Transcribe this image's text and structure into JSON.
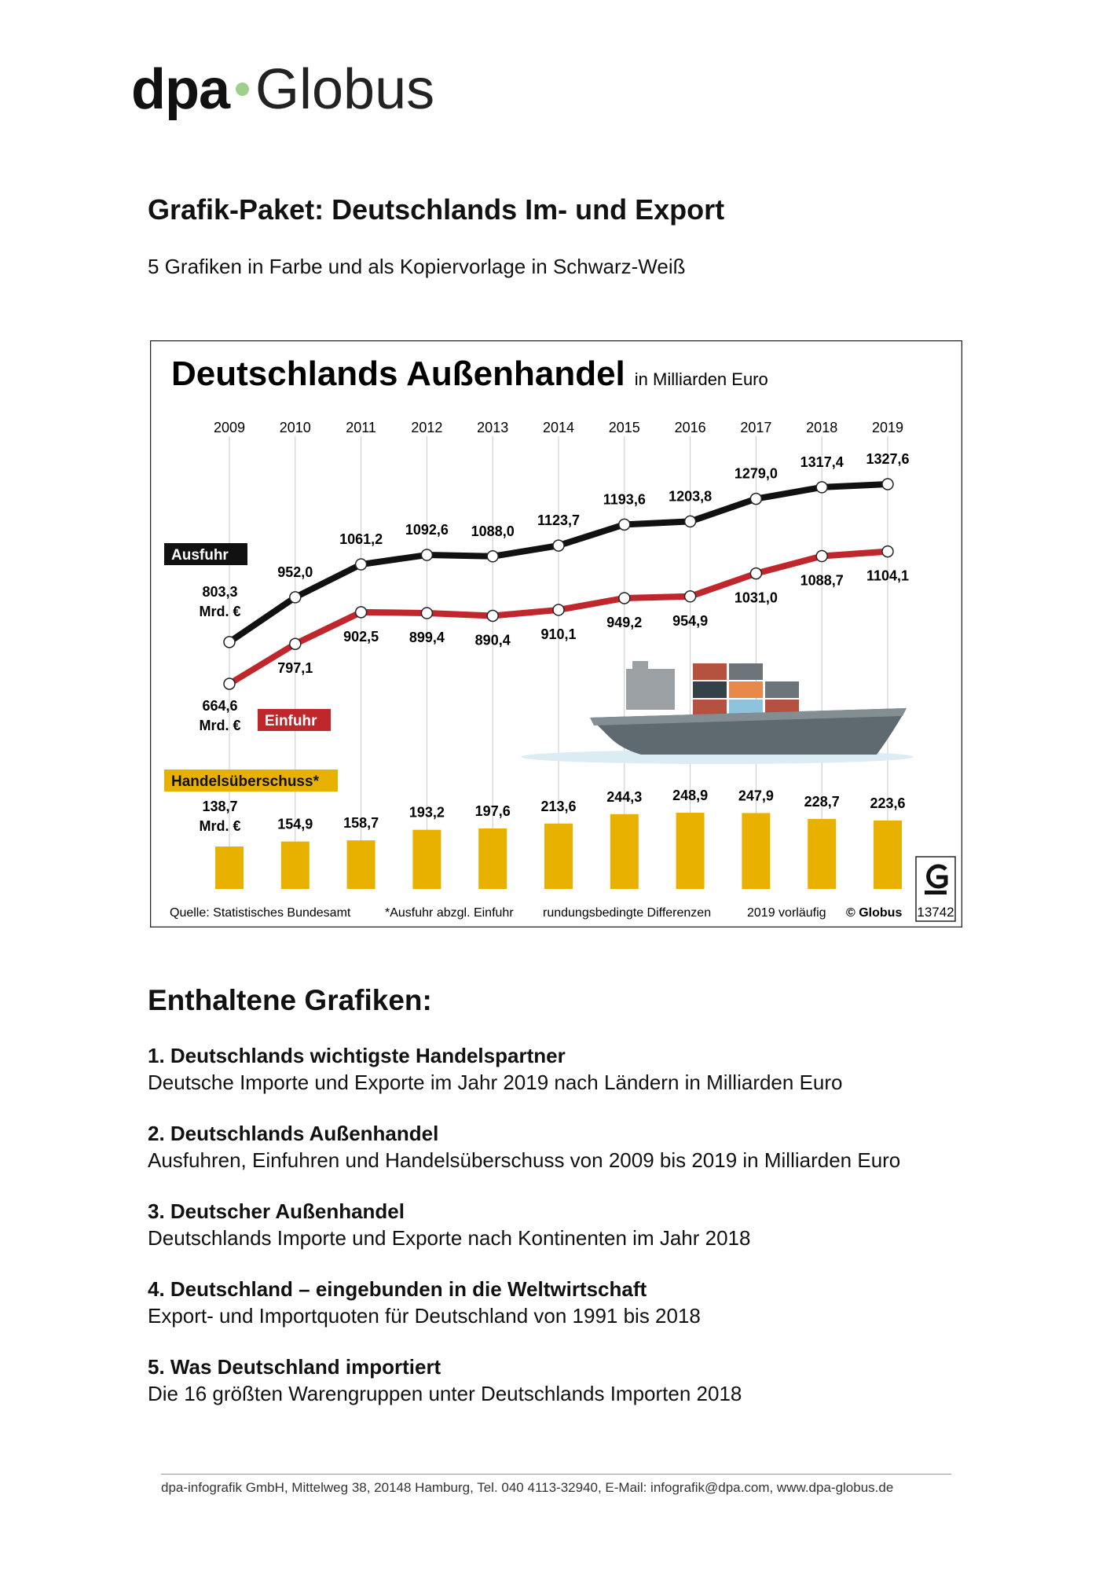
{
  "header": {
    "logo_left": "dpa",
    "logo_right": "Globus",
    "title": "Grafik-Paket: Deutschlands Im- und Export",
    "subtitle": "5 Grafiken in Farbe und als Kopiervorlage in Schwarz-Weiß"
  },
  "chart_data": {
    "type": "line",
    "title": "Deutschlands Außenhandel",
    "subtitle": "in Milliarden Euro",
    "categories": [
      "2009",
      "2010",
      "2011",
      "2012",
      "2013",
      "2014",
      "2015",
      "2016",
      "2017",
      "2018",
      "2019"
    ],
    "unit_label": "Mrd. €",
    "series": [
      {
        "name": "Ausfuhr",
        "color": "#111111",
        "values": [
          803.3,
          952.0,
          1061.2,
          1092.6,
          1088.0,
          1123.7,
          1193.6,
          1203.8,
          1279.0,
          1317.4,
          1327.6
        ],
        "value_labels": [
          "803,3",
          "952,0",
          "1061,2",
          "1092,6",
          "1088,0",
          "1123,7",
          "1193,6",
          "1203,8",
          "1279,0",
          "1317,4",
          "1327,6"
        ]
      },
      {
        "name": "Einfuhr",
        "color": "#c0272d",
        "values": [
          664.6,
          797.1,
          902.5,
          899.4,
          890.4,
          910.1,
          949.2,
          954.9,
          1031.0,
          1088.7,
          1104.1
        ],
        "value_labels": [
          "664,6",
          "797,1",
          "902,5",
          "899,4",
          "890,4",
          "910,1",
          "949,2",
          "954,9",
          "1031,0",
          "1088,7",
          "1104,1"
        ]
      },
      {
        "name": "Handelsüberschuss*",
        "type": "bar",
        "color": "#e8b100",
        "values": [
          138.7,
          154.9,
          158.7,
          193.2,
          197.6,
          213.6,
          244.3,
          248.9,
          247.9,
          228.7,
          223.6
        ],
        "value_labels": [
          "138,7",
          "154,9",
          "158,7",
          "193,2",
          "197,6",
          "213,6",
          "244,3",
          "248,9",
          "247,9",
          "228,7",
          "223,6"
        ]
      }
    ],
    "notes": [
      "Quelle: Statistisches Bundesamt",
      "*Ausfuhr abzgl. Einfuhr",
      "rundungsbedingte Differenzen",
      "2019 vorläufig",
      "© Globus"
    ],
    "logo_id": "13742"
  },
  "contents": {
    "title": "Enthaltene Grafiken:",
    "items": [
      {
        "title": "1. Deutschlands wichtigste Handelspartner",
        "description": "Deutsche Importe und Exporte im Jahr 2019 nach Ländern in Milliarden Euro"
      },
      {
        "title": "2. Deutschlands Außenhandel",
        "description": "Ausfuhren, Einfuhren und Handelsüberschuss von 2009 bis 2019 in Milliarden Euro"
      },
      {
        "title": "3. Deutscher Außenhandel",
        "description": "Deutschlands Importe und Exporte nach Kontinenten im Jahr 2018"
      },
      {
        "title": "4. Deutschland – eingebunden in die Weltwirtschaft",
        "description": "Export- und Importquoten für Deutschland von 1991 bis 2018"
      },
      {
        "title": "5. Was Deutschland importiert",
        "description": "Die 16 größten Warengruppen unter Deutschlands Importen 2018"
      }
    ]
  },
  "footer": "dpa-infografik GmbH, Mittelweg 38, 20148 Hamburg, Tel. 040 4113-32940, E-Mail: infografik@dpa.com,   www.dpa-globus.de"
}
